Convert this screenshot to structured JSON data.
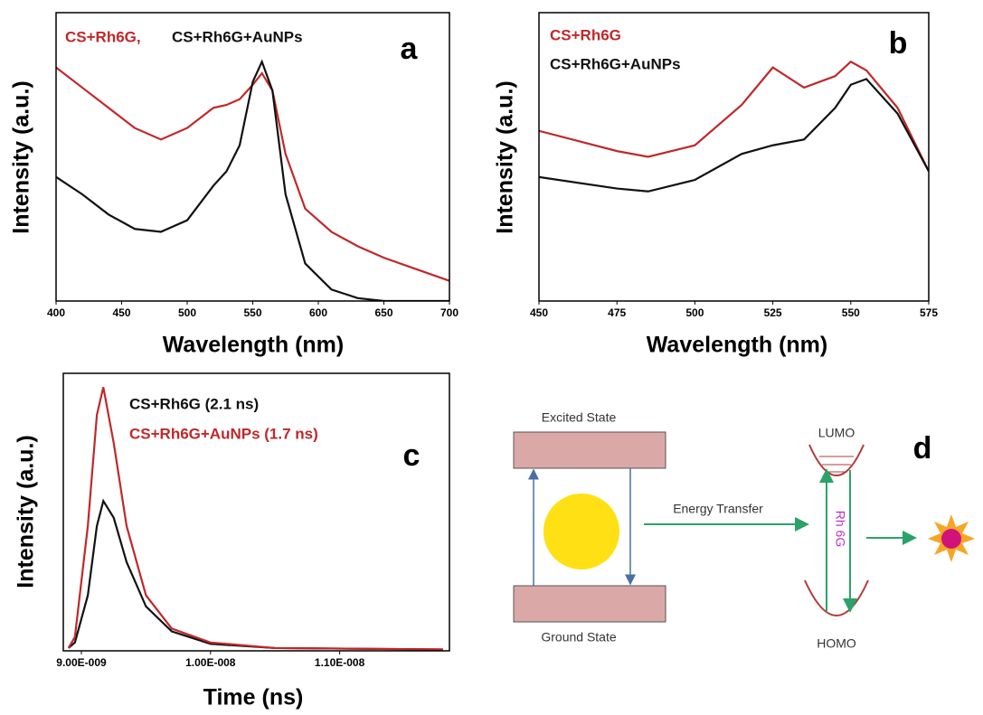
{
  "chart_data": [
    {
      "type": "line",
      "panel_label": "a",
      "xlabel": "Wavelength (nm)",
      "ylabel": "Intensity (a.u.)",
      "x": [
        400,
        420,
        440,
        460,
        480,
        500,
        520,
        530,
        540,
        550,
        557,
        565,
        575,
        590,
        610,
        630,
        650,
        675,
        700
      ],
      "series": [
        {
          "name": "CS+Rh6G,",
          "color": "#c0282a",
          "values": [
            0.81,
            0.74,
            0.67,
            0.6,
            0.56,
            0.6,
            0.67,
            0.68,
            0.7,
            0.75,
            0.79,
            0.73,
            0.51,
            0.32,
            0.24,
            0.19,
            0.15,
            0.11,
            0.07
          ]
        },
        {
          "name": "CS+Rh6G+AuNPs",
          "color": "#111111",
          "values": [
            0.43,
            0.37,
            0.3,
            0.25,
            0.24,
            0.28,
            0.4,
            0.45,
            0.54,
            0.76,
            0.83,
            0.73,
            0.37,
            0.13,
            0.04,
            0.01,
            0,
            0,
            0
          ]
        }
      ],
      "xlim": [
        400,
        700
      ],
      "xticks": [
        400,
        450,
        500,
        550,
        600,
        650,
        700
      ],
      "ylim": [
        0,
        1
      ]
    },
    {
      "type": "line",
      "panel_label": "b",
      "xlabel": "Wavelength (nm)",
      "ylabel": "Intensity (a.u.)",
      "x": [
        450,
        475,
        485,
        500,
        515,
        525,
        535,
        545,
        550,
        555,
        565,
        575
      ],
      "series": [
        {
          "name": "CS+Rh6G",
          "color": "#c0282a",
          "values": [
            0.59,
            0.52,
            0.5,
            0.54,
            0.68,
            0.81,
            0.74,
            0.78,
            0.83,
            0.8,
            0.67,
            0.45
          ]
        },
        {
          "name": "CS+Rh6G+AuNPs",
          "color": "#111111",
          "values": [
            0.43,
            0.39,
            0.38,
            0.42,
            0.51,
            0.54,
            0.56,
            0.67,
            0.75,
            0.77,
            0.65,
            0.45
          ]
        }
      ],
      "xlim": [
        450,
        575
      ],
      "xticks": [
        450,
        475,
        500,
        525,
        550,
        575
      ],
      "ylim": [
        0,
        1
      ]
    },
    {
      "type": "line",
      "panel_label": "c",
      "xlabel": "Time (ns)",
      "ylabel": "Intensity (a.u.)",
      "x": [
        8.9e-09,
        8.95e-09,
        9.05e-09,
        9.12e-09,
        9.17e-09,
        9.25e-09,
        9.35e-09,
        9.5e-09,
        9.7e-09,
        1e-08,
        1.05e-08,
        1.18e-08
      ],
      "series": [
        {
          "name": "CS+Rh6G (2.1 ns)",
          "color": "#111111",
          "values": [
            0.01,
            0.03,
            0.2,
            0.45,
            0.54,
            0.48,
            0.32,
            0.16,
            0.07,
            0.025,
            0.01,
            0.005
          ]
        },
        {
          "name": "CS+Rh6G+AuNPs (1.7 ns)",
          "color": "#c0282a",
          "values": [
            0.01,
            0.05,
            0.45,
            0.85,
            0.95,
            0.75,
            0.45,
            0.2,
            0.08,
            0.03,
            0.01,
            0.005
          ]
        }
      ],
      "xlim": [
        8.86e-09,
        1.185e-08
      ],
      "xticks": [
        {
          "value": 9e-09,
          "label": "9.00E-009"
        },
        {
          "value": 1e-08,
          "label": "1.00E-008"
        },
        {
          "value": 1.1e-08,
          "label": "1.10E-008"
        }
      ],
      "ylim": [
        0,
        1
      ]
    }
  ],
  "diagram": {
    "panel_label": "d",
    "excited": "Excited State",
    "ground": "Ground State",
    "transfer": "Energy Transfer",
    "lumo": "LUMO",
    "homo": "HOMO",
    "dye": "Rh 6G"
  }
}
